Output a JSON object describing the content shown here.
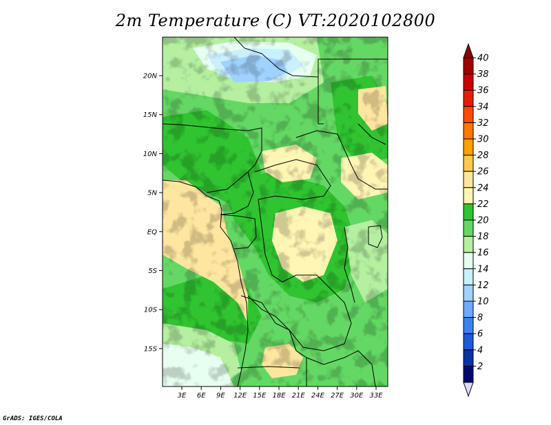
{
  "title": "2m Temperature (C) VT:2020102800",
  "credit": "GrADS: IGES/COLA",
  "map": {
    "lat_labels": [
      "20N",
      "15N",
      "10N",
      "5N",
      "EQ",
      "5S",
      "10S",
      "15S"
    ],
    "lon_labels": [
      "3E",
      "6E",
      "9E",
      "12E",
      "15E",
      "18E",
      "21E",
      "24E",
      "27E",
      "30E",
      "33E"
    ]
  },
  "colorbar": {
    "labels": [
      "40",
      "38",
      "36",
      "34",
      "32",
      "30",
      "28",
      "26",
      "24",
      "22",
      "20",
      "18",
      "16",
      "14",
      "12",
      "10",
      "8",
      "6",
      "4",
      "2"
    ],
    "colors": [
      "#a00000",
      "#c80000",
      "#e61e00",
      "#ff4b00",
      "#ff7800",
      "#ffa000",
      "#ffc850",
      "#ffe6a0",
      "#fff5b4",
      "#30c430",
      "#64d864",
      "#b4f0a0",
      "#e6fff0",
      "#c8f0ff",
      "#a0d2ff",
      "#6eaaff",
      "#3c82f0",
      "#1e5ad2",
      "#0a32a0",
      "#000a6e"
    ]
  }
}
